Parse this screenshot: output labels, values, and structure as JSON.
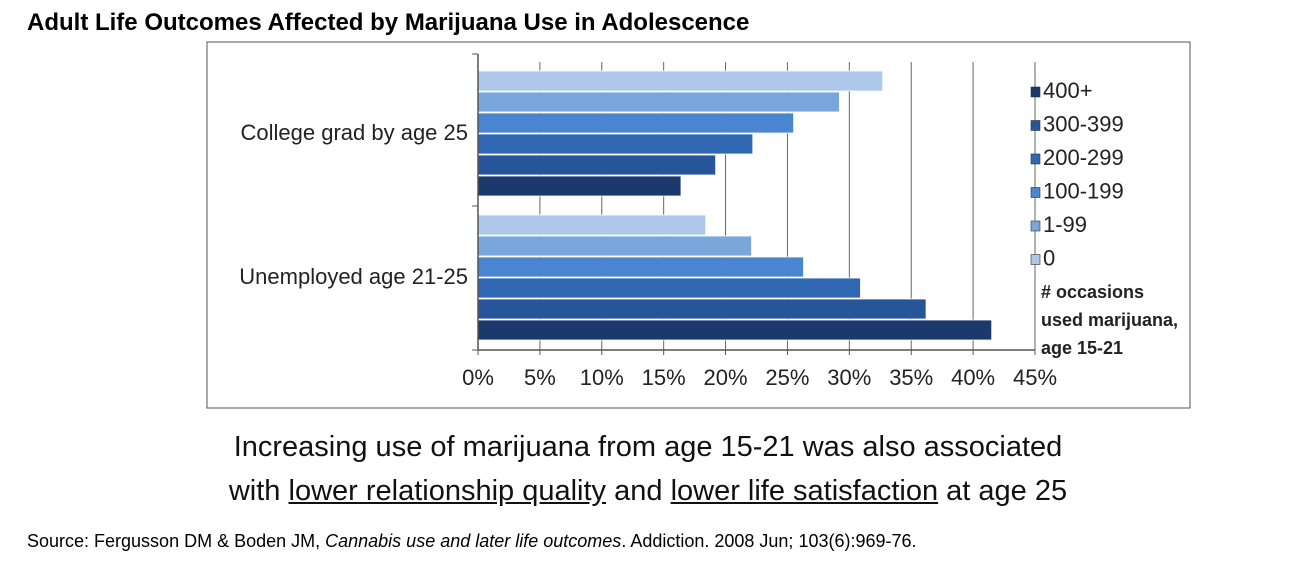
{
  "chart_data": {
    "type": "hbar",
    "title": "Adult Life Outcomes Affected by Marijuana Use in Adolescence",
    "categories": [
      "College grad by age 25",
      "Unemployed age 21-25"
    ],
    "series": [
      {
        "name": "0",
        "color": "#adc8e8",
        "values": [
          32.7,
          18.4
        ]
      },
      {
        "name": "1-99",
        "color": "#7aa6dc",
        "values": [
          29.2,
          22.1
        ]
      },
      {
        "name": "100-199",
        "color": "#4a86d0",
        "values": [
          25.5,
          26.3
        ]
      },
      {
        "name": "200-299",
        "color": "#2f67b2",
        "values": [
          22.2,
          30.9
        ]
      },
      {
        "name": "300-399",
        "color": "#26559a",
        "values": [
          19.2,
          36.2
        ]
      },
      {
        "name": "400+",
        "color": "#1b3a6b",
        "values": [
          16.4,
          41.5
        ]
      }
    ],
    "legend_title": [
      "# occasions",
      "used marijuana,",
      "age 15-21"
    ],
    "xlim": [
      0,
      45
    ],
    "xticks": [
      {
        "value": 0,
        "label": "0%"
      },
      {
        "value": 5,
        "label": "5%"
      },
      {
        "value": 10,
        "label": "10%"
      },
      {
        "value": 15,
        "label": "15%"
      },
      {
        "value": 20,
        "label": "20%"
      },
      {
        "value": 25,
        "label": "25%"
      },
      {
        "value": 30,
        "label": "30%"
      },
      {
        "value": 35,
        "label": "35%"
      },
      {
        "value": 40,
        "label": "40%"
      },
      {
        "value": 45,
        "label": "45%"
      }
    ],
    "grid": true,
    "annotation": {
      "line1": "Increasing use of marijuana from age 15-21 was also associated",
      "line2": [
        "with ",
        "lower relationship quality",
        " and ",
        "lower life satisfaction",
        " at age 25"
      ]
    },
    "source": [
      "Source: Fergusson DM & Boden JM, ",
      "Cannabis use and later life outcomes",
      ". Addiction. 2008 Jun; 103(6):969-76."
    ]
  }
}
